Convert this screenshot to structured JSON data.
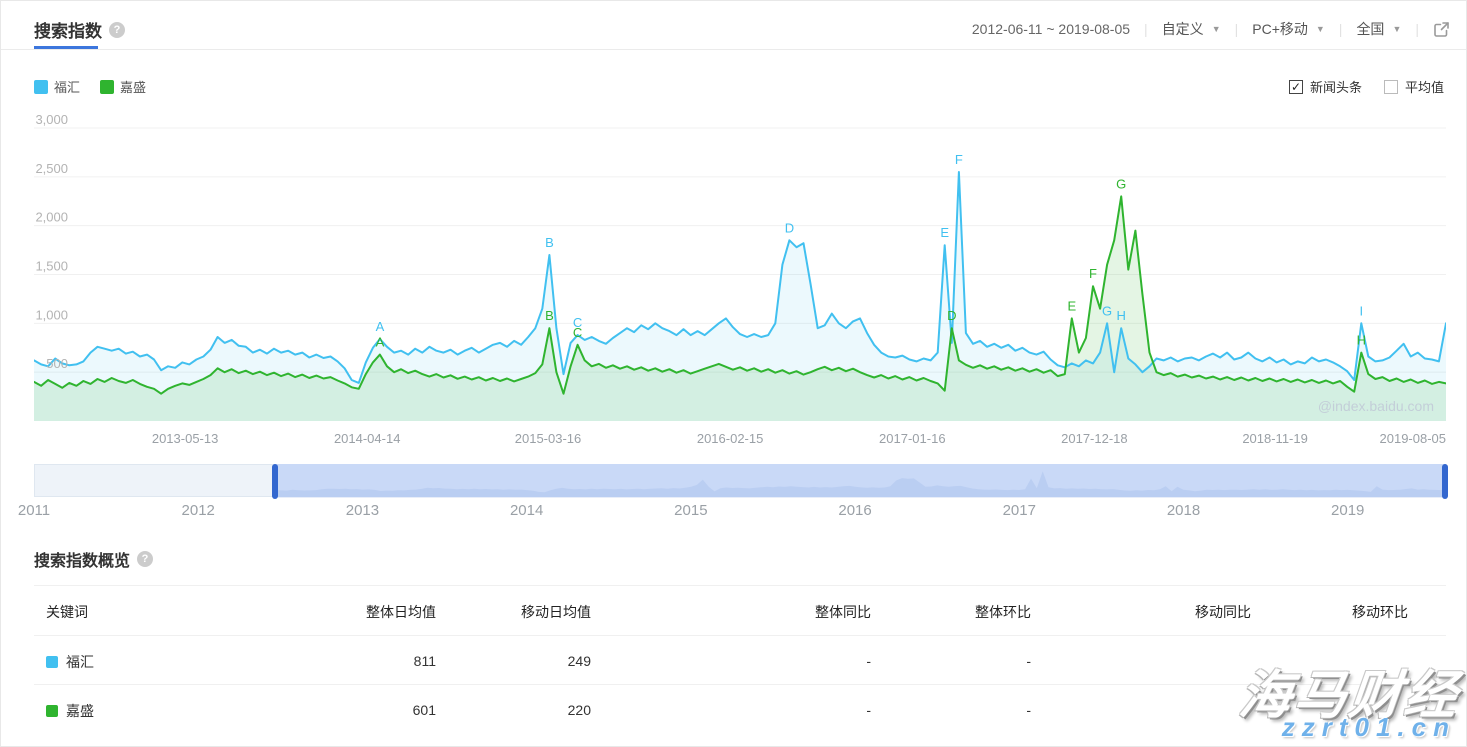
{
  "header": {
    "title": "搜索指数",
    "date_range": "2012-06-11 ~ 2019-08-05",
    "range_mode": "自定义",
    "device": "PC+移动",
    "region": "全国"
  },
  "toggles": [
    {
      "label": "新闻头条",
      "checked": true
    },
    {
      "label": "平均值",
      "checked": false
    }
  ],
  "chart_data": {
    "type": "line",
    "title": "搜索指数",
    "x_axis": {
      "start": "2012-06-11",
      "end": "2019-08-05",
      "note": "each series has 201 values evenly spaced across the date span",
      "tick_labels": [
        {
          "label": "2013-05-13",
          "f": 0.107
        },
        {
          "label": "2014-04-14",
          "f": 0.236
        },
        {
          "label": "2015-03-16",
          "f": 0.364
        },
        {
          "label": "2016-02-15",
          "f": 0.493
        },
        {
          "label": "2017-01-16",
          "f": 0.622
        },
        {
          "label": "2017-12-18",
          "f": 0.751
        },
        {
          "label": "2018-11-19",
          "f": 0.879
        },
        {
          "label": "2019-08-05",
          "f": 1.0,
          "align": "right"
        }
      ]
    },
    "y_axis": {
      "min": 0,
      "max": 3000,
      "ticks": [
        {
          "value": 500,
          "label": "500"
        },
        {
          "value": 1000,
          "label": "1,000"
        },
        {
          "value": 1500,
          "label": "1,500"
        },
        {
          "value": 2000,
          "label": "2,000"
        },
        {
          "value": 2500,
          "label": "2,500"
        },
        {
          "value": 3000,
          "label": "3,000"
        }
      ],
      "grid": true
    },
    "legend_position": "top-left",
    "watermark": "@index.baidu.com",
    "series": [
      {
        "name": "福汇",
        "color": "#41c0f0",
        "fill": "rgba(65,192,240,0.10)",
        "values": [
          620,
          580,
          560,
          640,
          590,
          570,
          580,
          610,
          700,
          760,
          740,
          720,
          740,
          690,
          710,
          660,
          680,
          630,
          520,
          560,
          545,
          600,
          580,
          630,
          660,
          730,
          860,
          800,
          830,
          770,
          760,
          700,
          730,
          690,
          740,
          700,
          720,
          680,
          700,
          650,
          680,
          645,
          660,
          610,
          540,
          420,
          390,
          600,
          750,
          840,
          760,
          700,
          720,
          680,
          740,
          700,
          760,
          720,
          700,
          730,
          680,
          720,
          750,
          700,
          740,
          780,
          800,
          760,
          820,
          780,
          860,
          950,
          1150,
          1700,
          950,
          480,
          800,
          880,
          830,
          860,
          820,
          790,
          850,
          900,
          950,
          910,
          980,
          940,
          1000,
          950,
          920,
          880,
          940,
          880,
          920,
          880,
          940,
          1000,
          1050,
          960,
          890,
          860,
          890,
          860,
          880,
          1000,
          1600,
          1850,
          1780,
          1820,
          1400,
          950,
          980,
          1100,
          1000,
          950,
          1020,
          1050,
          900,
          780,
          700,
          660,
          650,
          670,
          630,
          610,
          640,
          620,
          700,
          1800,
          800,
          2550,
          900,
          790,
          820,
          760,
          790,
          750,
          780,
          720,
          750,
          700,
          680,
          710,
          630,
          570,
          550,
          590,
          560,
          620,
          590,
          700,
          1000,
          500,
          950,
          640,
          580,
          500,
          560,
          640,
          620,
          650,
          610,
          640,
          650,
          620,
          660,
          690,
          650,
          700,
          630,
          650,
          700,
          640,
          610,
          650,
          600,
          630,
          580,
          610,
          590,
          650,
          610,
          630,
          600,
          560,
          510,
          420,
          1000,
          660,
          610,
          620,
          650,
          720,
          790,
          660,
          700,
          640,
          630,
          610,
          1000
        ],
        "markers": [
          {
            "letter": "A",
            "index": 49
          },
          {
            "letter": "B",
            "index": 73
          },
          {
            "letter": "C",
            "index": 77
          },
          {
            "letter": "D",
            "index": 107
          },
          {
            "letter": "E",
            "index": 129
          },
          {
            "letter": "F",
            "index": 131
          },
          {
            "letter": "G",
            "index": 152
          },
          {
            "letter": "H",
            "index": 154
          },
          {
            "letter": "I",
            "index": 188
          }
        ]
      },
      {
        "name": "嘉盛",
        "color": "#2fb42f",
        "fill": "rgba(47,180,47,0.13)",
        "values": [
          400,
          360,
          420,
          380,
          340,
          390,
          360,
          410,
          380,
          430,
          400,
          440,
          410,
          390,
          420,
          380,
          350,
          330,
          280,
          330,
          360,
          385,
          370,
          400,
          430,
          470,
          540,
          500,
          530,
          490,
          515,
          480,
          505,
          470,
          495,
          460,
          485,
          450,
          475,
          440,
          465,
          435,
          450,
          415,
          385,
          345,
          330,
          480,
          600,
          680,
          560,
          500,
          530,
          490,
          515,
          480,
          455,
          480,
          445,
          468,
          432,
          455,
          425,
          448,
          415,
          440,
          410,
          435,
          405,
          430,
          455,
          490,
          580,
          950,
          500,
          280,
          560,
          780,
          620,
          560,
          585,
          545,
          570,
          535,
          560,
          525,
          550,
          515,
          540,
          505,
          530,
          495,
          520,
          485,
          510,
          535,
          560,
          585,
          555,
          525,
          550,
          515,
          540,
          505,
          530,
          495,
          520,
          485,
          510,
          475,
          500,
          530,
          555,
          520,
          545,
          510,
          535,
          500,
          470,
          445,
          470,
          435,
          460,
          425,
          450,
          415,
          440,
          410,
          385,
          310,
          950,
          620,
          575,
          545,
          570,
          535,
          560,
          525,
          550,
          515,
          540,
          505,
          530,
          495,
          520,
          460,
          480,
          1050,
          700,
          850,
          1380,
          1150,
          1600,
          1850,
          2300,
          1550,
          1950,
          1300,
          700,
          500,
          470,
          490,
          455,
          475,
          445,
          465,
          435,
          455,
          425,
          450,
          420,
          445,
          415,
          440,
          410,
          435,
          405,
          430,
          400,
          425,
          395,
          420,
          390,
          415,
          385,
          410,
          350,
          300,
          700,
          480,
          430,
          450,
          410,
          435,
          400,
          425,
          390,
          415,
          380,
          400,
          385
        ],
        "markers": [
          {
            "letter": "A",
            "index": 49
          },
          {
            "letter": "B",
            "index": 73
          },
          {
            "letter": "C",
            "index": 77
          },
          {
            "letter": "D",
            "index": 130
          },
          {
            "letter": "E",
            "index": 147
          },
          {
            "letter": "F",
            "index": 150
          },
          {
            "letter": "G",
            "index": 154
          },
          {
            "letter": "H",
            "index": 188
          }
        ]
      }
    ]
  },
  "navigator": {
    "selection_start_f": 0.17,
    "selection_end_f": 1.0,
    "years": [
      {
        "label": "2011",
        "f": 0.0
      },
      {
        "label": "2012",
        "f": 0.1163
      },
      {
        "label": "2013",
        "f": 0.2326
      },
      {
        "label": "2014",
        "f": 0.3489
      },
      {
        "label": "2015",
        "f": 0.4652
      },
      {
        "label": "2016",
        "f": 0.5815
      },
      {
        "label": "2017",
        "f": 0.6978
      },
      {
        "label": "2018",
        "f": 0.8141
      },
      {
        "label": "2019",
        "f": 0.9304
      }
    ]
  },
  "overview": {
    "title": "搜索指数概览",
    "columns": [
      "关键词",
      "整体日均值",
      "移动日均值",
      "整体同比",
      "整体环比",
      "移动同比",
      "移动环比"
    ],
    "rows": [
      {
        "keyword": "福汇",
        "color": "#41c0f0",
        "overall_daily_avg": "811",
        "mobile_daily_avg": "249",
        "overall_yoy": "-",
        "overall_mom": "-",
        "mobile_yoy": "",
        "mobile_mom": ""
      },
      {
        "keyword": "嘉盛",
        "color": "#2fb42f",
        "overall_daily_avg": "601",
        "mobile_daily_avg": "220",
        "overall_yoy": "-",
        "overall_mom": "-",
        "mobile_yoy": "",
        "mobile_mom": ""
      }
    ]
  },
  "site_watermark": {
    "brand": "海马财经",
    "url": "zzrt01.cn"
  }
}
